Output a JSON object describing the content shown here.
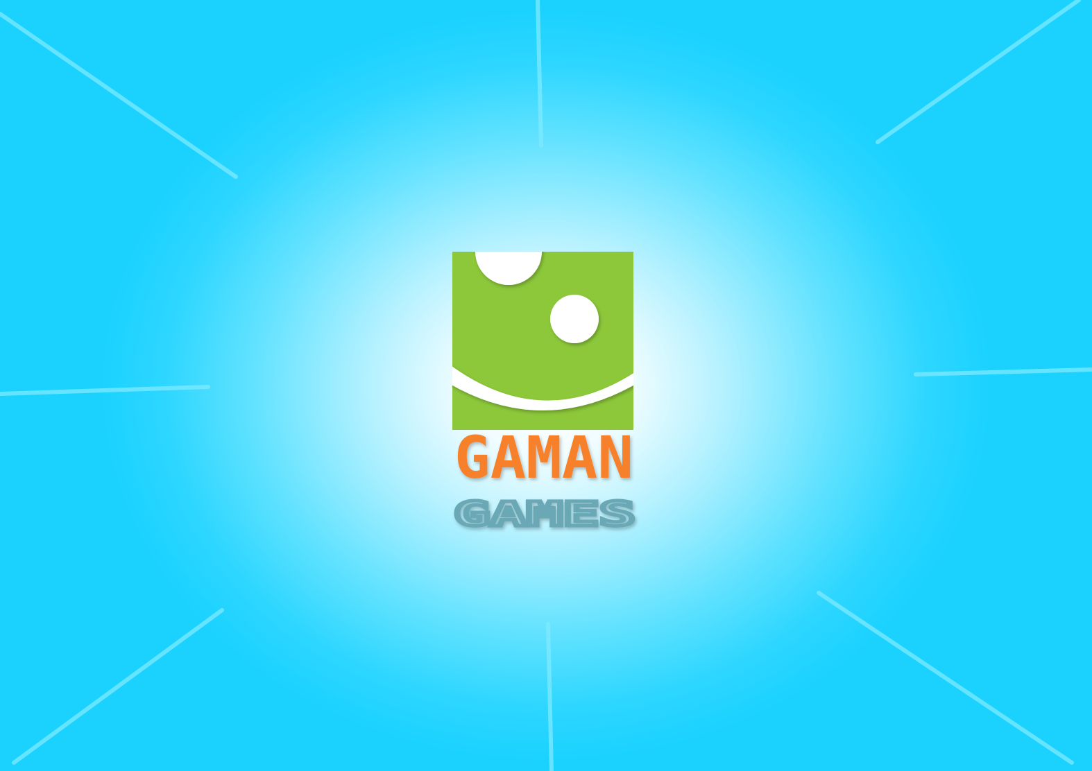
{
  "screen": "splash",
  "studio": {
    "name_top": "GAMAN",
    "name_bottom": "GAMES"
  },
  "logo": {
    "icon": "smiling-face-square-icon"
  },
  "colors": {
    "background_outer": "#1bd2ff",
    "background_center": "#ffffff",
    "ray": "#6ee7ff",
    "logo_green": "#8cc83a",
    "logo_orange": "#f7802a",
    "logo_teal": "#6aa8b5",
    "logo_white": "#ffffff"
  }
}
